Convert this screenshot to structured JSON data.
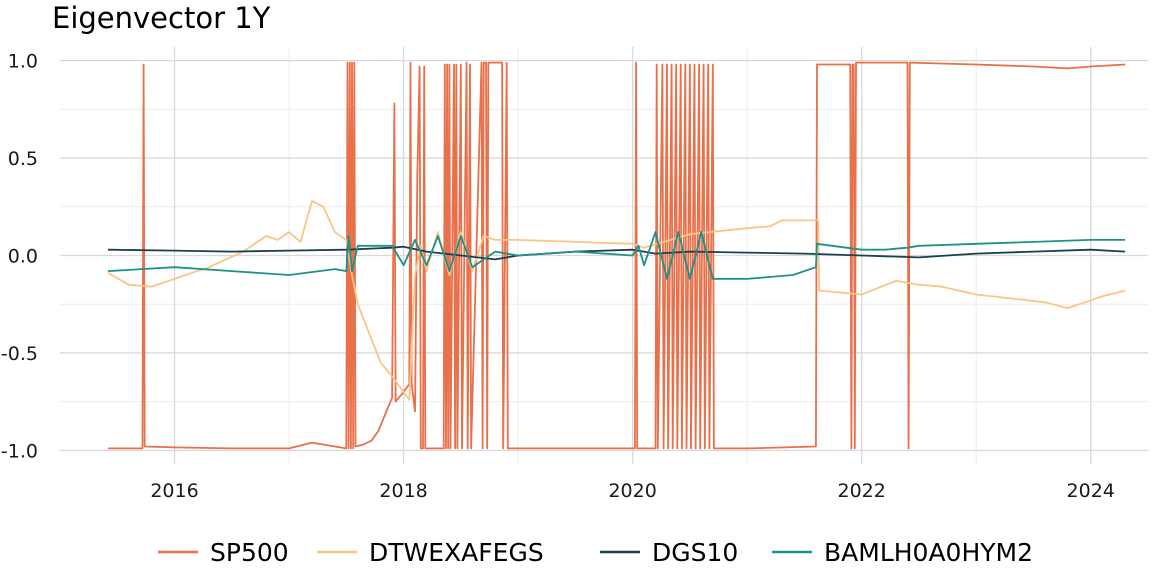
{
  "chart_data": {
    "type": "line",
    "title": "Eigenvector 1Y",
    "xlabel": "",
    "ylabel": "",
    "xlim": [
      2015.0,
      2024.5
    ],
    "ylim": [
      -1.07,
      1.07
    ],
    "x_ticks": [
      2016,
      2018,
      2020,
      2022,
      2024
    ],
    "x_tick_labels": [
      "2016",
      "2018",
      "2020",
      "2022",
      "2024"
    ],
    "y_ticks": [
      -1.0,
      -0.5,
      0.0,
      0.5,
      1.0
    ],
    "y_tick_labels": [
      "-1.0",
      "-0.5",
      "0.0",
      "0.5",
      "1.0"
    ],
    "grid": true,
    "legend_position": "bottom",
    "series": [
      {
        "name": "SP500",
        "color": "#E8704A",
        "points": [
          [
            2015.42,
            -0.99
          ],
          [
            2015.72,
            -0.99
          ],
          [
            2015.73,
            0.98
          ],
          [
            2015.74,
            -0.98
          ],
          [
            2016.0,
            -0.985
          ],
          [
            2016.5,
            -0.99
          ],
          [
            2017.0,
            -0.99
          ],
          [
            2017.2,
            -0.96
          ],
          [
            2017.4,
            -0.98
          ],
          [
            2017.5,
            -0.99
          ],
          [
            2017.51,
            0.99
          ],
          [
            2017.52,
            -0.99
          ],
          [
            2017.53,
            0.99
          ],
          [
            2017.54,
            -0.99
          ],
          [
            2017.55,
            0.99
          ],
          [
            2017.56,
            -0.99
          ],
          [
            2017.57,
            0.99
          ],
          [
            2017.58,
            -0.98
          ],
          [
            2017.65,
            -0.97
          ],
          [
            2017.72,
            -0.95
          ],
          [
            2017.78,
            -0.9
          ],
          [
            2017.85,
            -0.8
          ],
          [
            2017.9,
            -0.73
          ],
          [
            2017.92,
            0.78
          ],
          [
            2017.93,
            -0.75
          ],
          [
            2018.0,
            -0.7
          ],
          [
            2018.05,
            -0.66
          ],
          [
            2018.06,
            0.99
          ],
          [
            2018.07,
            -0.66
          ],
          [
            2018.1,
            -0.8
          ],
          [
            2018.12,
            0.4
          ],
          [
            2018.14,
            0.97
          ],
          [
            2018.15,
            -0.99
          ],
          [
            2018.17,
            -0.99
          ],
          [
            2018.18,
            0.97
          ],
          [
            2018.19,
            -0.99
          ],
          [
            2018.35,
            -0.99
          ],
          [
            2018.36,
            0.98
          ],
          [
            2018.37,
            -0.99
          ],
          [
            2018.38,
            0.98
          ],
          [
            2018.39,
            -0.99
          ],
          [
            2018.4,
            0.98
          ],
          [
            2018.41,
            -0.99
          ],
          [
            2018.44,
            0.98
          ],
          [
            2018.45,
            -0.99
          ],
          [
            2018.46,
            0.98
          ],
          [
            2018.47,
            -0.99
          ],
          [
            2018.5,
            0.98
          ],
          [
            2018.51,
            -0.99
          ],
          [
            2018.55,
            0.99
          ],
          [
            2018.56,
            -0.99
          ],
          [
            2018.58,
            0.98
          ],
          [
            2018.59,
            -0.99
          ],
          [
            2018.68,
            0.99
          ],
          [
            2018.69,
            -0.99
          ],
          [
            2018.7,
            0.99
          ],
          [
            2018.72,
            0.99
          ],
          [
            2018.73,
            -0.99
          ],
          [
            2018.74,
            0.99
          ],
          [
            2018.86,
            0.99
          ],
          [
            2018.87,
            -0.99
          ],
          [
            2018.9,
            0.99
          ],
          [
            2018.91,
            -0.99
          ],
          [
            2019.5,
            -0.99
          ],
          [
            2020.0,
            -0.99
          ],
          [
            2020.02,
            -0.99
          ],
          [
            2020.03,
            0.99
          ],
          [
            2020.04,
            -0.99
          ],
          [
            2020.2,
            -0.99
          ],
          [
            2020.21,
            0.98
          ],
          [
            2020.22,
            -0.99
          ],
          [
            2020.26,
            0.98
          ],
          [
            2020.27,
            -0.99
          ],
          [
            2020.3,
            0.98
          ],
          [
            2020.31,
            -0.99
          ],
          [
            2020.34,
            0.98
          ],
          [
            2020.35,
            -0.99
          ],
          [
            2020.38,
            0.98
          ],
          [
            2020.39,
            -0.99
          ],
          [
            2020.42,
            0.98
          ],
          [
            2020.43,
            -0.99
          ],
          [
            2020.46,
            0.98
          ],
          [
            2020.47,
            -0.99
          ],
          [
            2020.5,
            0.98
          ],
          [
            2020.51,
            -0.99
          ],
          [
            2020.54,
            0.98
          ],
          [
            2020.55,
            -0.99
          ],
          [
            2020.58,
            0.98
          ],
          [
            2020.59,
            -0.99
          ],
          [
            2020.62,
            0.98
          ],
          [
            2020.63,
            -0.99
          ],
          [
            2020.66,
            0.98
          ],
          [
            2020.67,
            -0.99
          ],
          [
            2020.7,
            0.98
          ],
          [
            2020.71,
            -0.99
          ],
          [
            2021.0,
            -0.99
          ],
          [
            2021.6,
            -0.98
          ],
          [
            2021.61,
            0.98
          ],
          [
            2021.9,
            0.98
          ],
          [
            2021.91,
            -0.99
          ],
          [
            2021.92,
            0.98
          ],
          [
            2021.93,
            0.98
          ],
          [
            2021.94,
            -0.99
          ],
          [
            2021.95,
            0.99
          ],
          [
            2022.4,
            0.99
          ],
          [
            2022.41,
            -0.99
          ],
          [
            2022.42,
            0.99
          ],
          [
            2023.0,
            0.98
          ],
          [
            2023.5,
            0.97
          ],
          [
            2023.8,
            0.96
          ],
          [
            2024.0,
            0.97
          ],
          [
            2024.3,
            0.98
          ]
        ]
      },
      {
        "name": "DTWEXAFEGS",
        "color": "#F9C685",
        "points": [
          [
            2015.42,
            -0.09
          ],
          [
            2015.6,
            -0.15
          ],
          [
            2015.8,
            -0.16
          ],
          [
            2016.0,
            -0.12
          ],
          [
            2016.3,
            -0.06
          ],
          [
            2016.6,
            0.02
          ],
          [
            2016.8,
            0.1
          ],
          [
            2016.9,
            0.08
          ],
          [
            2017.0,
            0.12
          ],
          [
            2017.1,
            0.07
          ],
          [
            2017.2,
            0.28
          ],
          [
            2017.3,
            0.25
          ],
          [
            2017.4,
            0.12
          ],
          [
            2017.5,
            0.08
          ],
          [
            2017.55,
            -0.1
          ],
          [
            2017.6,
            -0.25
          ],
          [
            2017.7,
            -0.4
          ],
          [
            2017.8,
            -0.55
          ],
          [
            2017.9,
            -0.62
          ],
          [
            2018.0,
            -0.7
          ],
          [
            2018.05,
            -0.74
          ],
          [
            2018.1,
            -0.1
          ],
          [
            2018.15,
            0.05
          ],
          [
            2018.2,
            -0.08
          ],
          [
            2018.3,
            0.12
          ],
          [
            2018.4,
            -0.1
          ],
          [
            2018.5,
            0.12
          ],
          [
            2018.6,
            -0.08
          ],
          [
            2018.7,
            0.1
          ],
          [
            2018.8,
            0.08
          ],
          [
            2019.0,
            0.08
          ],
          [
            2019.5,
            0.07
          ],
          [
            2020.0,
            0.06
          ],
          [
            2020.1,
            0.04
          ],
          [
            2020.5,
            0.11
          ],
          [
            2021.0,
            0.14
          ],
          [
            2021.2,
            0.15
          ],
          [
            2021.3,
            0.18
          ],
          [
            2021.5,
            0.18
          ],
          [
            2021.62,
            0.18
          ],
          [
            2021.63,
            -0.18
          ],
          [
            2022.0,
            -0.2
          ],
          [
            2022.3,
            -0.13
          ],
          [
            2022.5,
            -0.15
          ],
          [
            2022.7,
            -0.16
          ],
          [
            2023.0,
            -0.2
          ],
          [
            2023.3,
            -0.22
          ],
          [
            2023.6,
            -0.24
          ],
          [
            2023.8,
            -0.27
          ],
          [
            2023.9,
            -0.25
          ],
          [
            2024.1,
            -0.21
          ],
          [
            2024.3,
            -0.18
          ]
        ]
      },
      {
        "name": "DGS10",
        "color": "#1C3F4F",
        "points": [
          [
            2015.42,
            0.03
          ],
          [
            2016.0,
            0.025
          ],
          [
            2016.5,
            0.02
          ],
          [
            2017.0,
            0.025
          ],
          [
            2017.5,
            0.03
          ],
          [
            2017.9,
            0.04
          ],
          [
            2018.0,
            0.045
          ],
          [
            2018.2,
            0.02
          ],
          [
            2018.5,
            0.0
          ],
          [
            2018.8,
            -0.02
          ],
          [
            2019.0,
            0.0
          ],
          [
            2019.5,
            0.02
          ],
          [
            2020.0,
            0.03
          ],
          [
            2020.2,
            0.01
          ],
          [
            2020.5,
            0.02
          ],
          [
            2021.0,
            0.015
          ],
          [
            2021.5,
            0.01
          ],
          [
            2022.0,
            0.0
          ],
          [
            2022.5,
            -0.01
          ],
          [
            2023.0,
            0.01
          ],
          [
            2023.5,
            0.02
          ],
          [
            2024.0,
            0.03
          ],
          [
            2024.3,
            0.02
          ]
        ]
      },
      {
        "name": "BAMLH0A0HYM2",
        "color": "#1F9188",
        "points": [
          [
            2015.42,
            -0.08
          ],
          [
            2016.0,
            -0.06
          ],
          [
            2016.5,
            -0.08
          ],
          [
            2017.0,
            -0.1
          ],
          [
            2017.4,
            -0.07
          ],
          [
            2017.5,
            -0.08
          ],
          [
            2017.52,
            0.1
          ],
          [
            2017.55,
            -0.08
          ],
          [
            2017.6,
            0.05
          ],
          [
            2017.9,
            0.05
          ],
          [
            2018.0,
            -0.05
          ],
          [
            2018.1,
            0.08
          ],
          [
            2018.2,
            -0.05
          ],
          [
            2018.3,
            0.1
          ],
          [
            2018.4,
            -0.08
          ],
          [
            2018.5,
            0.1
          ],
          [
            2018.6,
            -0.06
          ],
          [
            2018.8,
            0.02
          ],
          [
            2019.0,
            0.0
          ],
          [
            2019.5,
            0.02
          ],
          [
            2020.0,
            0.0
          ],
          [
            2020.05,
            0.05
          ],
          [
            2020.1,
            -0.05
          ],
          [
            2020.2,
            0.12
          ],
          [
            2020.3,
            -0.12
          ],
          [
            2020.4,
            0.12
          ],
          [
            2020.5,
            -0.12
          ],
          [
            2020.6,
            0.12
          ],
          [
            2020.7,
            -0.12
          ],
          [
            2021.0,
            -0.12
          ],
          [
            2021.4,
            -0.1
          ],
          [
            2021.6,
            -0.06
          ],
          [
            2021.61,
            0.06
          ],
          [
            2022.0,
            0.03
          ],
          [
            2022.2,
            0.03
          ],
          [
            2022.4,
            0.04
          ],
          [
            2022.5,
            0.05
          ],
          [
            2023.0,
            0.06
          ],
          [
            2023.5,
            0.07
          ],
          [
            2024.0,
            0.08
          ],
          [
            2024.3,
            0.08
          ]
        ]
      }
    ]
  }
}
